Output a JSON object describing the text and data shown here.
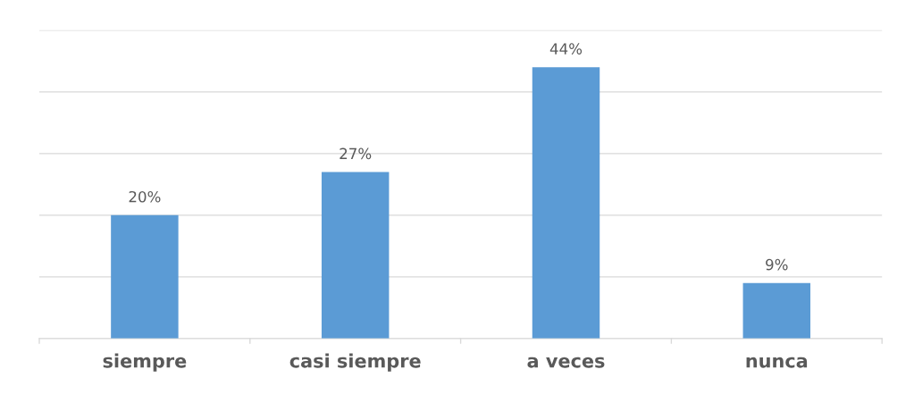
{
  "chart_data": {
    "type": "bar",
    "categories": [
      "siempre",
      "casi siempre",
      "a veces",
      "nunca"
    ],
    "values": [
      20,
      27,
      44,
      9
    ],
    "value_labels": [
      "20%",
      "27%",
      "44%",
      "9%"
    ],
    "color": "#5b9bd5",
    "ylim": [
      0,
      50
    ],
    "yticks": [
      {
        "value": 0,
        "label": null
      },
      {
        "value": 10,
        "label": null
      },
      {
        "value": 20,
        "label": null
      },
      {
        "value": 30,
        "label": null
      },
      {
        "value": 40,
        "label": null
      },
      {
        "value": 50,
        "label": null
      }
    ],
    "tick_labels": "x",
    "grid": "y"
  }
}
